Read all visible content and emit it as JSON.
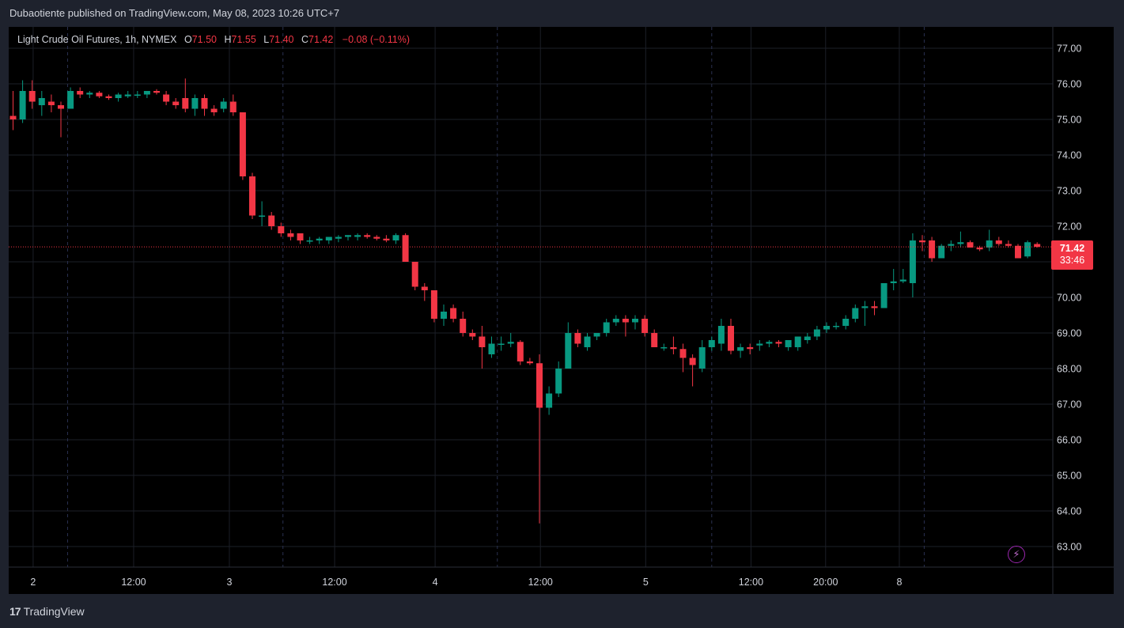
{
  "header": {
    "published": "Dubaotiente published on TradingView.com, May 08, 2023 10:26 UTC+7"
  },
  "legend": {
    "symbol": "Light Crude Oil Futures, 1h, NYMEX",
    "o_label": "O",
    "o": "71.50",
    "h_label": "H",
    "h": "71.55",
    "l_label": "L",
    "l": "71.40",
    "c_label": "C",
    "c": "71.42",
    "change": "−0.08 (−0.11%)"
  },
  "last_price": {
    "price": "71.42",
    "countdown": "33:46"
  },
  "footer": {
    "brand": "TradingView"
  },
  "colors": {
    "up": "#089981",
    "down": "#f23645",
    "bg": "#000000",
    "grid": "#1c1f27",
    "text": "#d1d4dc"
  },
  "icons": {
    "bolt": "lightning-bolt-icon",
    "logo": "tradingview-logo-icon"
  },
  "chart_data": {
    "type": "candlestick",
    "interval": "1h",
    "y_ticks": [
      "77.00",
      "76.00",
      "75.00",
      "74.00",
      "73.00",
      "72.00",
      "71.00",
      "70.00",
      "69.00",
      "68.00",
      "67.00",
      "66.00",
      "65.00",
      "64.00",
      "63.00"
    ],
    "ylim": [
      62.6,
      77.35
    ],
    "x_ticks": [
      {
        "label": "2",
        "index": 2.1
      },
      {
        "label": "12:00",
        "index": 12.6
      },
      {
        "label": "3",
        "index": 22.6
      },
      {
        "label": "12:00",
        "index": 33.6
      },
      {
        "label": "4",
        "index": 44.1
      },
      {
        "label": "12:00",
        "index": 55.1
      },
      {
        "label": "5",
        "index": 66.1
      },
      {
        "label": "12:00",
        "index": 77.1
      },
      {
        "label": "20:00",
        "index": 84.9
      },
      {
        "label": "8",
        "index": 92.6
      }
    ],
    "session_breaks": [
      5.7,
      28.2,
      50.6,
      73.0,
      95.2
    ],
    "last_price": 71.42,
    "candles": [
      [
        75.1,
        75.8,
        74.7,
        75.0
      ],
      [
        75.0,
        76.1,
        74.9,
        75.8
      ],
      [
        75.8,
        76.1,
        75.3,
        75.5
      ],
      [
        75.4,
        75.8,
        75.1,
        75.6
      ],
      [
        75.5,
        75.7,
        75.2,
        75.4
      ],
      [
        75.4,
        75.5,
        74.5,
        75.3
      ],
      [
        75.3,
        75.9,
        75.3,
        75.8
      ],
      [
        75.8,
        75.9,
        75.6,
        75.7
      ],
      [
        75.7,
        75.8,
        75.6,
        75.75
      ],
      [
        75.75,
        75.8,
        75.6,
        75.65
      ],
      [
        75.65,
        75.7,
        75.55,
        75.6
      ],
      [
        75.6,
        75.75,
        75.5,
        75.7
      ],
      [
        75.65,
        75.8,
        75.6,
        75.7
      ],
      [
        75.7,
        75.8,
        75.6,
        75.7
      ],
      [
        75.7,
        75.8,
        75.6,
        75.8
      ],
      [
        75.8,
        75.85,
        75.7,
        75.75
      ],
      [
        75.7,
        75.8,
        75.4,
        75.5
      ],
      [
        75.5,
        75.6,
        75.3,
        75.4
      ],
      [
        75.6,
        76.15,
        75.2,
        75.3
      ],
      [
        75.3,
        75.7,
        75.1,
        75.6
      ],
      [
        75.6,
        75.7,
        75.1,
        75.3
      ],
      [
        75.3,
        75.4,
        75.1,
        75.2
      ],
      [
        75.3,
        75.6,
        75.2,
        75.5
      ],
      [
        75.5,
        75.7,
        75.1,
        75.2
      ],
      [
        75.2,
        75.2,
        73.3,
        73.4
      ],
      [
        73.4,
        73.5,
        72.2,
        72.3
      ],
      [
        72.3,
        72.7,
        72.0,
        72.3
      ],
      [
        72.3,
        72.4,
        71.9,
        72.0
      ],
      [
        72.0,
        72.1,
        71.7,
        71.8
      ],
      [
        71.8,
        71.9,
        71.6,
        71.7
      ],
      [
        71.8,
        71.8,
        71.5,
        71.6
      ],
      [
        71.6,
        71.7,
        71.5,
        71.6
      ],
      [
        71.6,
        71.7,
        71.5,
        71.65
      ],
      [
        71.6,
        71.7,
        71.5,
        71.7
      ],
      [
        71.65,
        71.75,
        71.55,
        71.7
      ],
      [
        71.7,
        71.75,
        71.6,
        71.75
      ],
      [
        71.7,
        71.8,
        71.6,
        71.75
      ],
      [
        71.75,
        71.8,
        71.65,
        71.7
      ],
      [
        71.7,
        71.75,
        71.6,
        71.65
      ],
      [
        71.65,
        71.75,
        71.55,
        71.6
      ],
      [
        71.6,
        71.8,
        71.5,
        71.75
      ],
      [
        71.75,
        71.8,
        71.0,
        71.0
      ],
      [
        71.0,
        71.0,
        70.2,
        70.3
      ],
      [
        70.3,
        70.4,
        69.9,
        70.2
      ],
      [
        70.2,
        70.2,
        69.3,
        69.4
      ],
      [
        69.4,
        69.8,
        69.2,
        69.6
      ],
      [
        69.7,
        69.8,
        69.3,
        69.4
      ],
      [
        69.4,
        69.6,
        68.9,
        69.0
      ],
      [
        69.0,
        69.1,
        68.8,
        68.9
      ],
      [
        68.9,
        69.2,
        68.0,
        68.6
      ],
      [
        68.4,
        68.9,
        68.3,
        68.7
      ],
      [
        68.7,
        68.9,
        68.5,
        68.7
      ],
      [
        68.7,
        69.0,
        68.6,
        68.75
      ],
      [
        68.75,
        68.8,
        68.1,
        68.2
      ],
      [
        68.2,
        68.3,
        68.1,
        68.15
      ],
      [
        68.15,
        68.4,
        63.65,
        66.9
      ],
      [
        66.9,
        67.5,
        66.7,
        67.3
      ],
      [
        67.3,
        68.2,
        67.2,
        68.0
      ],
      [
        68.0,
        69.3,
        68.0,
        69.0
      ],
      [
        69.0,
        69.1,
        68.6,
        68.7
      ],
      [
        68.6,
        69.0,
        68.5,
        68.9
      ],
      [
        68.9,
        69.0,
        68.8,
        69.0
      ],
      [
        69.0,
        69.4,
        68.9,
        69.3
      ],
      [
        69.3,
        69.5,
        69.2,
        69.4
      ],
      [
        69.4,
        69.5,
        68.9,
        69.3
      ],
      [
        69.3,
        69.5,
        69.1,
        69.4
      ],
      [
        69.4,
        69.5,
        68.9,
        69.0
      ],
      [
        69.0,
        69.1,
        68.6,
        68.6
      ],
      [
        68.6,
        68.7,
        68.5,
        68.6
      ],
      [
        68.6,
        68.9,
        68.4,
        68.55
      ],
      [
        68.55,
        68.7,
        67.9,
        68.3
      ],
      [
        68.3,
        68.4,
        67.5,
        68.1
      ],
      [
        68.0,
        68.8,
        67.9,
        68.6
      ],
      [
        68.6,
        68.9,
        68.5,
        68.8
      ],
      [
        68.7,
        69.4,
        68.5,
        69.2
      ],
      [
        69.2,
        69.4,
        68.4,
        68.5
      ],
      [
        68.5,
        68.7,
        68.3,
        68.6
      ],
      [
        68.6,
        68.7,
        68.4,
        68.55
      ],
      [
        68.65,
        68.8,
        68.5,
        68.7
      ],
      [
        68.7,
        68.8,
        68.6,
        68.75
      ],
      [
        68.75,
        68.8,
        68.6,
        68.7
      ],
      [
        68.6,
        68.8,
        68.5,
        68.8
      ],
      [
        68.6,
        68.9,
        68.5,
        68.9
      ],
      [
        68.8,
        69.0,
        68.7,
        68.9
      ],
      [
        68.9,
        69.2,
        68.8,
        69.1
      ],
      [
        69.1,
        69.3,
        69.0,
        69.2
      ],
      [
        69.2,
        69.3,
        69.1,
        69.2
      ],
      [
        69.2,
        69.5,
        69.1,
        69.4
      ],
      [
        69.4,
        69.8,
        69.3,
        69.7
      ],
      [
        69.7,
        69.9,
        69.2,
        69.75
      ],
      [
        69.75,
        69.9,
        69.5,
        69.7
      ],
      [
        69.7,
        70.4,
        69.7,
        70.4
      ],
      [
        70.4,
        70.8,
        70.2,
        70.45
      ],
      [
        70.45,
        70.8,
        70.4,
        70.5
      ],
      [
        70.4,
        71.8,
        70.0,
        71.6
      ],
      [
        71.6,
        71.75,
        71.3,
        71.55
      ],
      [
        71.6,
        71.7,
        71.0,
        71.1
      ],
      [
        71.1,
        71.5,
        71.1,
        71.45
      ],
      [
        71.45,
        71.6,
        71.3,
        71.5
      ],
      [
        71.5,
        71.85,
        71.4,
        71.55
      ],
      [
        71.55,
        71.6,
        71.4,
        71.4
      ],
      [
        71.4,
        71.45,
        71.3,
        71.35
      ],
      [
        71.4,
        71.9,
        71.3,
        71.6
      ],
      [
        71.6,
        71.7,
        71.45,
        71.5
      ],
      [
        71.5,
        71.6,
        71.4,
        71.45
      ],
      [
        71.45,
        71.5,
        71.1,
        71.1
      ],
      [
        71.15,
        71.6,
        71.1,
        71.55
      ],
      [
        71.5,
        71.55,
        71.4,
        71.42
      ]
    ]
  }
}
